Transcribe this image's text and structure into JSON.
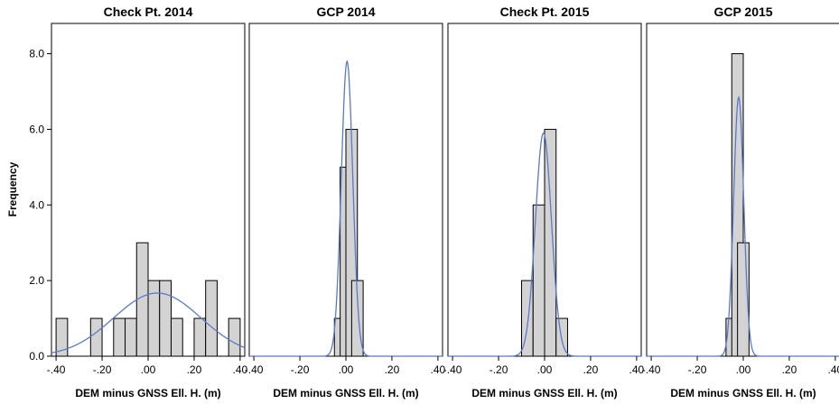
{
  "chart_data": {
    "type": "bar",
    "ylabel": "Frequency",
    "ylim": [
      0,
      8.8
    ],
    "yticks": [
      "0.0",
      "2.0",
      "4.0",
      "6.0",
      "8.0"
    ],
    "ytick_values": [
      0,
      2,
      4,
      6,
      8
    ],
    "xlim": [
      -0.42,
      0.42
    ],
    "xtick_values": [
      -0.4,
      -0.2,
      0.0,
      0.2,
      0.4
    ],
    "xticks": [
      "-.40",
      "-.20",
      ".00",
      ".20",
      ".40"
    ],
    "bar_fill": "#d3d3d3",
    "curve_color": "#5b79c8",
    "panels": [
      {
        "title": "Check Pt. 2014",
        "xlabel": "DEM minus GNSS Ell. H. (m)",
        "bin_width": 0.05,
        "bins": [
          {
            "x": -0.4,
            "count": 1
          },
          {
            "x": -0.25,
            "count": 1
          },
          {
            "x": -0.15,
            "count": 1
          },
          {
            "x": -0.1,
            "count": 1
          },
          {
            "x": -0.05,
            "count": 3
          },
          {
            "x": 0.0,
            "count": 2
          },
          {
            "x": 0.05,
            "count": 2
          },
          {
            "x": 0.1,
            "count": 1
          },
          {
            "x": 0.2,
            "count": 1
          },
          {
            "x": 0.25,
            "count": 2
          },
          {
            "x": 0.35,
            "count": 1
          }
        ],
        "normal_curve": {
          "mean": 0.04,
          "peak": 1.67,
          "sd": 0.19
        }
      },
      {
        "title": "GCP 2014",
        "xlabel": "DEM minus GNSS Ell. H. (m)",
        "bin_width": 0.05,
        "bins": [
          {
            "x": -0.05,
            "count": 1
          },
          {
            "x": -0.025,
            "count": 5
          },
          {
            "x": 0.0,
            "count": 6
          },
          {
            "x": 0.025,
            "count": 2
          }
        ],
        "normal_curve": {
          "mean": 0.005,
          "peak": 7.8,
          "sd": 0.025
        }
      },
      {
        "title": "Check Pt. 2015",
        "xlabel": "DEM minus GNSS Ell. H. (m)",
        "bin_width": 0.05,
        "bins": [
          {
            "x": -0.1,
            "count": 2
          },
          {
            "x": -0.05,
            "count": 4
          },
          {
            "x": 0.0,
            "count": 6
          },
          {
            "x": 0.05,
            "count": 1
          }
        ],
        "normal_curve": {
          "mean": -0.005,
          "peak": 5.9,
          "sd": 0.035
        }
      },
      {
        "title": "GCP 2015",
        "xlabel": "DEM minus GNSS Ell. H. (m)",
        "bin_width": 0.05,
        "bins": [
          {
            "x": -0.075,
            "count": 1
          },
          {
            "x": -0.05,
            "count": 8
          },
          {
            "x": -0.025,
            "count": 3
          }
        ],
        "normal_curve": {
          "mean": -0.02,
          "peak": 6.85,
          "sd": 0.022
        }
      }
    ]
  }
}
